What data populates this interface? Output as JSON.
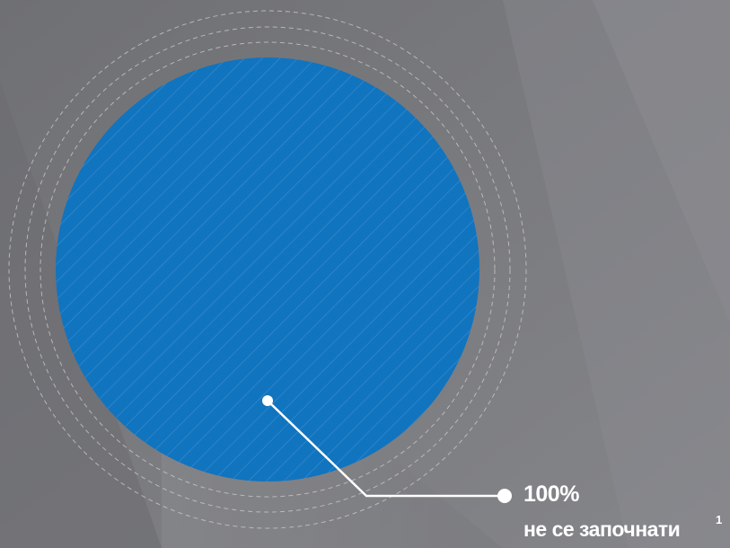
{
  "chart_data": {
    "type": "pie",
    "categories": [
      "не се започнати"
    ],
    "values": [
      100
    ],
    "value_labels": [
      "100%"
    ],
    "footnote": "1"
  },
  "colors": {
    "background": "#77787c",
    "slice": "#1174bf",
    "rings": "#c8c8cc",
    "leader": "#ffffff"
  }
}
